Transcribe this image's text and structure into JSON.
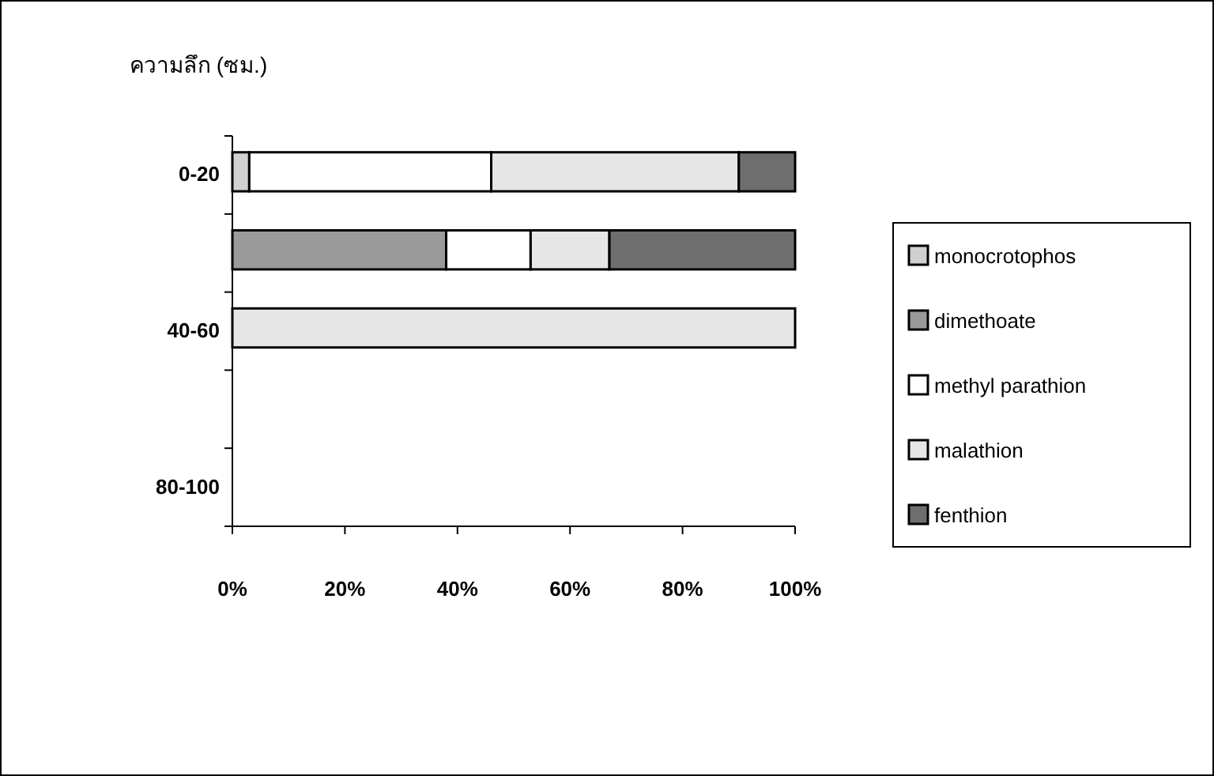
{
  "chart_data": {
    "type": "bar",
    "orientation": "horizontal",
    "stacked": true,
    "ylabel": "ความลึก (ซม.)",
    "categories": [
      "0-20",
      null,
      "40-60",
      null,
      "80-100"
    ],
    "xlim": [
      0,
      100
    ],
    "xticks": [
      {
        "value": 0,
        "label": "0%"
      },
      {
        "value": 20,
        "label": "20%"
      },
      {
        "value": 40,
        "label": "40%"
      },
      {
        "value": 60,
        "label": "60%"
      },
      {
        "value": 80,
        "label": "80%"
      },
      {
        "value": 100,
        "label": "100%"
      }
    ],
    "legend": "right",
    "grid": false,
    "series": [
      {
        "name": "monocrotophos",
        "color": "#d0d0d0",
        "values": [
          3,
          0,
          0,
          null,
          null
        ]
      },
      {
        "name": "dimethoate",
        "color": "#9a9a9a",
        "values": [
          0,
          38,
          0,
          null,
          null
        ]
      },
      {
        "name": "methyl parathion",
        "color": "#ffffff",
        "values": [
          43,
          15,
          0,
          null,
          null
        ]
      },
      {
        "name": "malathion",
        "color": "#e6e6e6",
        "values": [
          44,
          14,
          100,
          null,
          null
        ]
      },
      {
        "name": "fenthion",
        "color": "#6e6e6e",
        "values": [
          10,
          33,
          0,
          null,
          null
        ]
      }
    ]
  }
}
